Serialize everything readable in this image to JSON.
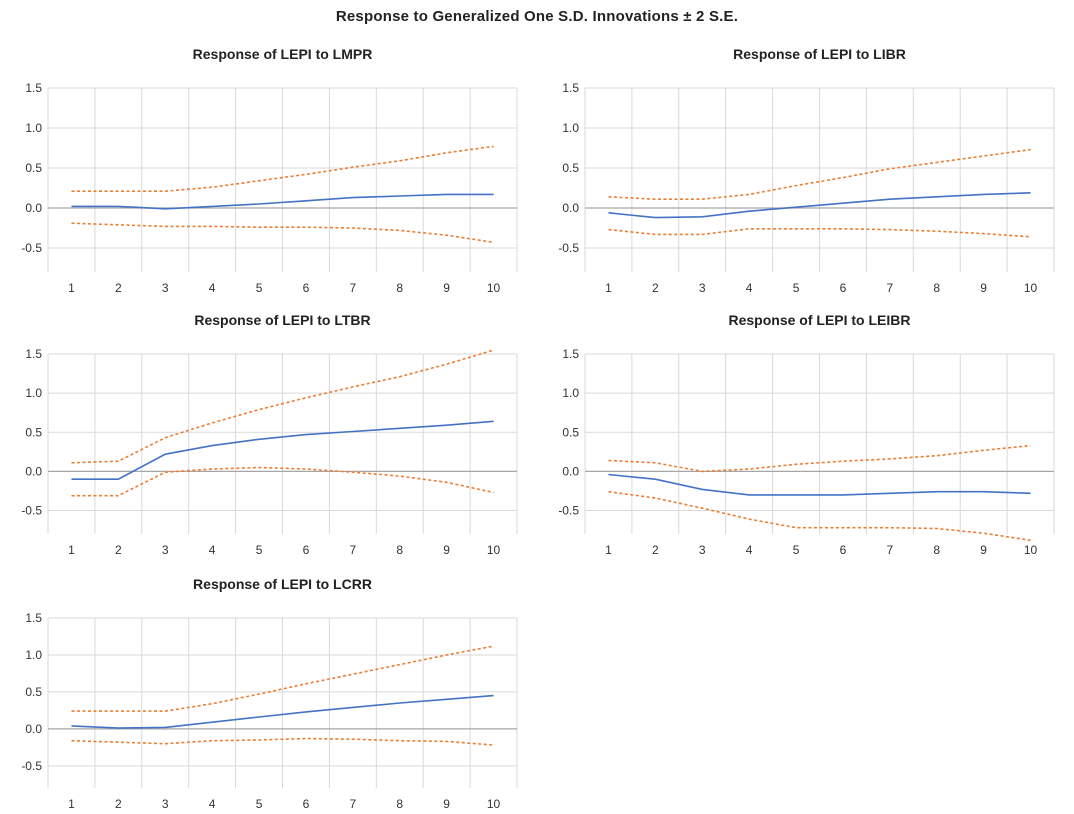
{
  "title": "Response to Generalized One S.D. Innovations ± 2 S.E.",
  "colors": {
    "response": "#4472C4",
    "bands": "#ED7D31",
    "grid": "#D9D9D9",
    "zero": "#A6A6A6"
  },
  "chart_data": [
    {
      "type": "line",
      "title": "Response of LEPI to LMPR",
      "x": [
        1,
        2,
        3,
        4,
        5,
        6,
        7,
        8,
        9,
        10
      ],
      "ylim": [
        -0.8,
        1.5
      ],
      "yticks": [
        "1.5",
        "1.0",
        "0.5",
        "0.0",
        "-0.5"
      ],
      "grid": true,
      "series": [
        {
          "values": [
            0.02,
            0.02,
            -0.01,
            0.02,
            0.05,
            0.09,
            0.13,
            0.15,
            0.17,
            0.17
          ]
        },
        {
          "values": [
            0.21,
            0.21,
            0.21,
            0.26,
            0.34,
            0.42,
            0.51,
            0.59,
            0.69,
            0.77
          ],
          "style": "dashed"
        },
        {
          "values": [
            -0.19,
            -0.21,
            -0.23,
            -0.23,
            -0.24,
            -0.24,
            -0.25,
            -0.28,
            -0.34,
            -0.43
          ],
          "style": "dashed"
        }
      ]
    },
    {
      "type": "line",
      "title": "Response of LEPI to LIBR",
      "x": [
        1,
        2,
        3,
        4,
        5,
        6,
        7,
        8,
        9,
        10
      ],
      "ylim": [
        -0.8,
        1.5
      ],
      "yticks": [
        "1.5",
        "1.0",
        "0.5",
        "0.0",
        "-0.5"
      ],
      "grid": true,
      "series": [
        {
          "values": [
            -0.06,
            -0.12,
            -0.11,
            -0.04,
            0.01,
            0.06,
            0.11,
            0.14,
            0.17,
            0.19
          ]
        },
        {
          "values": [
            0.14,
            0.11,
            0.11,
            0.17,
            0.28,
            0.38,
            0.49,
            0.57,
            0.65,
            0.73
          ],
          "style": "dashed"
        },
        {
          "values": [
            -0.27,
            -0.33,
            -0.33,
            -0.26,
            -0.26,
            -0.26,
            -0.27,
            -0.29,
            -0.32,
            -0.36
          ],
          "style": "dashed"
        }
      ]
    },
    {
      "type": "line",
      "title": "Response of LEPI to LTBR",
      "x": [
        1,
        2,
        3,
        4,
        5,
        6,
        7,
        8,
        9,
        10
      ],
      "ylim": [
        -0.8,
        1.5
      ],
      "yticks": [
        "1.5",
        "1.0",
        "0.5",
        "0.0",
        "-0.5"
      ],
      "grid": true,
      "series": [
        {
          "values": [
            -0.1,
            -0.1,
            0.22,
            0.33,
            0.41,
            0.47,
            0.51,
            0.55,
            0.59,
            0.64
          ]
        },
        {
          "values": [
            0.11,
            0.13,
            0.43,
            0.62,
            0.79,
            0.94,
            1.08,
            1.21,
            1.37,
            1.55
          ],
          "style": "dashed"
        },
        {
          "values": [
            -0.31,
            -0.31,
            -0.01,
            0.03,
            0.05,
            0.03,
            -0.01,
            -0.06,
            -0.14,
            -0.27
          ],
          "style": "dashed"
        }
      ]
    },
    {
      "type": "line",
      "title": "Response of LEPI to LEIBR",
      "x": [
        1,
        2,
        3,
        4,
        5,
        6,
        7,
        8,
        9,
        10
      ],
      "ylim": [
        -0.8,
        1.5
      ],
      "yticks": [
        "1.5",
        "1.0",
        "0.5",
        "0.0",
        "-0.5"
      ],
      "grid": true,
      "series": [
        {
          "values": [
            -0.04,
            -0.1,
            -0.23,
            -0.3,
            -0.3,
            -0.3,
            -0.28,
            -0.26,
            -0.26,
            -0.28
          ]
        },
        {
          "values": [
            0.14,
            0.11,
            0.0,
            0.03,
            0.09,
            0.13,
            0.16,
            0.2,
            0.27,
            0.33
          ],
          "style": "dashed"
        },
        {
          "values": [
            -0.26,
            -0.34,
            -0.47,
            -0.61,
            -0.72,
            -0.72,
            -0.72,
            -0.73,
            -0.79,
            -0.88
          ],
          "style": "dashed"
        }
      ]
    },
    {
      "type": "line",
      "title": "Response of LEPI to LCRR",
      "x": [
        1,
        2,
        3,
        4,
        5,
        6,
        7,
        8,
        9,
        10
      ],
      "ylim": [
        -0.8,
        1.5
      ],
      "yticks": [
        "1.5",
        "1.0",
        "0.5",
        "0.0",
        "-0.5"
      ],
      "grid": true,
      "series": [
        {
          "values": [
            0.04,
            0.01,
            0.02,
            0.09,
            0.16,
            0.23,
            0.29,
            0.35,
            0.4,
            0.45
          ]
        },
        {
          "values": [
            0.24,
            0.24,
            0.24,
            0.34,
            0.47,
            0.61,
            0.74,
            0.87,
            1.0,
            1.12
          ],
          "style": "dashed"
        },
        {
          "values": [
            -0.16,
            -0.18,
            -0.2,
            -0.16,
            -0.15,
            -0.13,
            -0.14,
            -0.16,
            -0.17,
            -0.22
          ],
          "style": "dashed"
        }
      ]
    }
  ]
}
